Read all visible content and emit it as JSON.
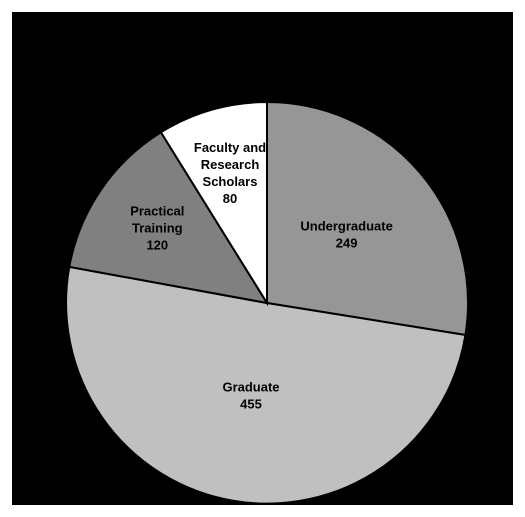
{
  "chart_data": {
    "type": "pie",
    "title": "",
    "slices": [
      {
        "label": [
          "Undergraduate"
        ],
        "value": 249,
        "color": "#969696",
        "text_color": "#000000"
      },
      {
        "label": [
          "Graduate"
        ],
        "value": 455,
        "color": "#c0c0c0",
        "text_color": "#000000"
      },
      {
        "label": [
          "Practical",
          "Training"
        ],
        "value": 120,
        "color": "#808080",
        "text_color": "#000000"
      },
      {
        "label": [
          "Faculty and",
          "Research",
          "Scholars"
        ],
        "value": 80,
        "color": "#ffffff",
        "text_color": "#000000"
      }
    ],
    "background": "#000000",
    "start_angle_deg": 0,
    "direction": "clockwise",
    "legend": "none"
  }
}
